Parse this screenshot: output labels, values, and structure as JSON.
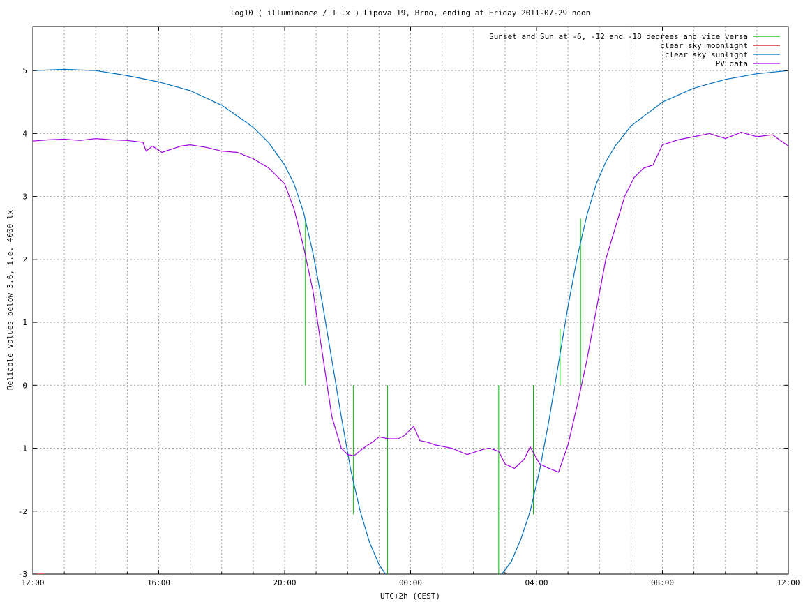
{
  "chart_data": {
    "type": "line",
    "title": "log10 ( illuminance / 1 lx ) Lipova 19, Brno, ending at Friday 2011-07-29 noon",
    "xlabel": "UTC+2h (CEST)",
    "ylabel": "Reliable values below 3.6, i.e. 4000 lx",
    "x_unit": "hours since 12:00 (UTC+2h)",
    "xlim": [
      0,
      24
    ],
    "ylim": [
      -3,
      5.7
    ],
    "x_ticks": [
      {
        "value": 0,
        "label": "12:00"
      },
      {
        "value": 4,
        "label": "16:00"
      },
      {
        "value": 8,
        "label": "20:00"
      },
      {
        "value": 12,
        "label": "00:00"
      },
      {
        "value": 16,
        "label": "04:00"
      },
      {
        "value": 20,
        "label": "08:00"
      },
      {
        "value": 24,
        "label": "12:00"
      }
    ],
    "x_minor_step": 1,
    "y_ticks": [
      {
        "value": -3,
        "label": "-3"
      },
      {
        "value": -2,
        "label": "-2"
      },
      {
        "value": -1,
        "label": "-1"
      },
      {
        "value": 0,
        "label": "0"
      },
      {
        "value": 1,
        "label": "1"
      },
      {
        "value": 2,
        "label": "2"
      },
      {
        "value": 3,
        "label": "3"
      },
      {
        "value": 4,
        "label": "4"
      },
      {
        "value": 5,
        "label": "5"
      }
    ],
    "grid": true,
    "legend_position": "top-right",
    "series": [
      {
        "name": "Sunset and Sun at -6, -12 and -18 degrees and vice versa",
        "color": "#00c000",
        "style": "vertical-markers",
        "markers": [
          {
            "x": 8.66,
            "y_from": 0,
            "y_to": 2.65
          },
          {
            "x": 10.18,
            "y_from": 0,
            "y_to": -2.05
          },
          {
            "x": 11.27,
            "y_from": 0,
            "y_to": -3
          },
          {
            "x": 14.8,
            "y_from": 0,
            "y_to": -3
          },
          {
            "x": 15.9,
            "y_from": 0,
            "y_to": -2.05
          },
          {
            "x": 16.75,
            "y_from": 0,
            "y_to": 0.9
          },
          {
            "x": 17.4,
            "y_from": 0,
            "y_to": 2.65
          }
        ]
      },
      {
        "name": "clear sky moonlight",
        "color": "#e00000",
        "x": [
          0,
          0.35
        ],
        "y": [
          -3,
          -3
        ]
      },
      {
        "name": "clear sky sunlight",
        "color": "#0070c0",
        "x": [
          0,
          1,
          2,
          3,
          4,
          5,
          6,
          7,
          7.5,
          8,
          8.3,
          8.6,
          8.9,
          9.2,
          9.5,
          9.8,
          10.1,
          10.4,
          10.7,
          11.0,
          11.2,
          11.4,
          14.7,
          14.9,
          15.2,
          15.5,
          15.8,
          16.1,
          16.4,
          16.7,
          17.0,
          17.3,
          17.6,
          17.9,
          18.2,
          18.5,
          19,
          20,
          21,
          22,
          23,
          24
        ],
        "y": [
          5.0,
          5.02,
          5.0,
          4.92,
          4.82,
          4.68,
          4.45,
          4.1,
          3.85,
          3.5,
          3.2,
          2.75,
          2.1,
          1.3,
          0.4,
          -0.5,
          -1.35,
          -2.0,
          -2.5,
          -2.85,
          -3.0,
          -3.1,
          -3.1,
          -3.0,
          -2.8,
          -2.45,
          -2.0,
          -1.35,
          -0.55,
          0.35,
          1.25,
          2.05,
          2.7,
          3.2,
          3.55,
          3.8,
          4.12,
          4.5,
          4.72,
          4.86,
          4.95,
          5.0
        ]
      },
      {
        "name": "PV data",
        "color": "#a000e0",
        "x": [
          0,
          0.5,
          1,
          1.5,
          2,
          2.5,
          3,
          3.5,
          3.6,
          3.8,
          4.1,
          4.4,
          4.7,
          5,
          5.5,
          6,
          6.5,
          7,
          7.5,
          8,
          8.3,
          8.6,
          8.9,
          9.2,
          9.5,
          9.8,
          10.0,
          10.2,
          10.5,
          10.8,
          11.0,
          11.3,
          11.6,
          11.8,
          12.1,
          12.3,
          12.5,
          12.8,
          13.3,
          13.8,
          14.3,
          14.5,
          14.8,
          15.0,
          15.3,
          15.6,
          15.8,
          16.1,
          16.4,
          16.7,
          17.0,
          17.3,
          17.6,
          17.9,
          18.2,
          18.5,
          18.8,
          19.1,
          19.4,
          19.7,
          20.0,
          20.5,
          21,
          21.5,
          22,
          22.5,
          23,
          23.5,
          24
        ],
        "y": [
          3.88,
          3.9,
          3.91,
          3.89,
          3.92,
          3.9,
          3.89,
          3.86,
          3.72,
          3.8,
          3.7,
          3.75,
          3.8,
          3.82,
          3.78,
          3.72,
          3.7,
          3.6,
          3.45,
          3.2,
          2.8,
          2.2,
          1.5,
          0.5,
          -0.5,
          -1.0,
          -1.1,
          -1.12,
          -1.0,
          -0.9,
          -0.82,
          -0.85,
          -0.85,
          -0.8,
          -0.65,
          -0.88,
          -0.9,
          -0.95,
          -1.0,
          -1.1,
          -1.02,
          -1.0,
          -1.05,
          -1.25,
          -1.32,
          -1.18,
          -0.98,
          -1.25,
          -1.32,
          -1.38,
          -0.95,
          -0.3,
          0.4,
          1.2,
          2.0,
          2.5,
          3.0,
          3.3,
          3.45,
          3.5,
          3.82,
          3.9,
          3.95,
          4.0,
          3.92,
          4.02,
          3.95,
          3.98,
          3.8
        ]
      }
    ]
  }
}
